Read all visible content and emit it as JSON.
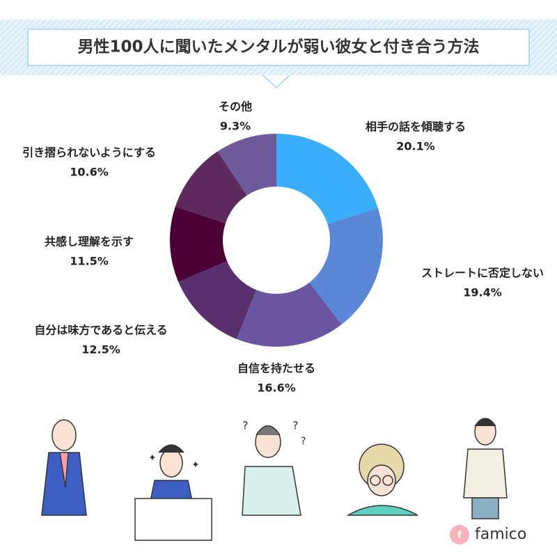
{
  "chart_data": {
    "type": "pie",
    "donut": true,
    "title": "男性100人に聞いたメンタルが弱い彼女と付き合う方法",
    "categories": [
      "相手の話を傾聴する",
      "ストレートに否定しない",
      "自信を持たせる",
      "自分は味方であると伝える",
      "共感し理解を示す",
      "引き摺られないようにする",
      "その他"
    ],
    "values": [
      20.1,
      19.4,
      16.6,
      12.5,
      11.5,
      10.6,
      9.3
    ],
    "value_labels": [
      "20.1%",
      "19.4%",
      "16.6%",
      "12.5%",
      "11.5%",
      "10.6%",
      "9.3%"
    ],
    "colors": [
      "#3aaefa",
      "#5b87d8",
      "#6a55a0",
      "#5a2f6e",
      "#4a0035",
      "#5e2a5e",
      "#6e5a9a"
    ]
  },
  "brand": "famico"
}
